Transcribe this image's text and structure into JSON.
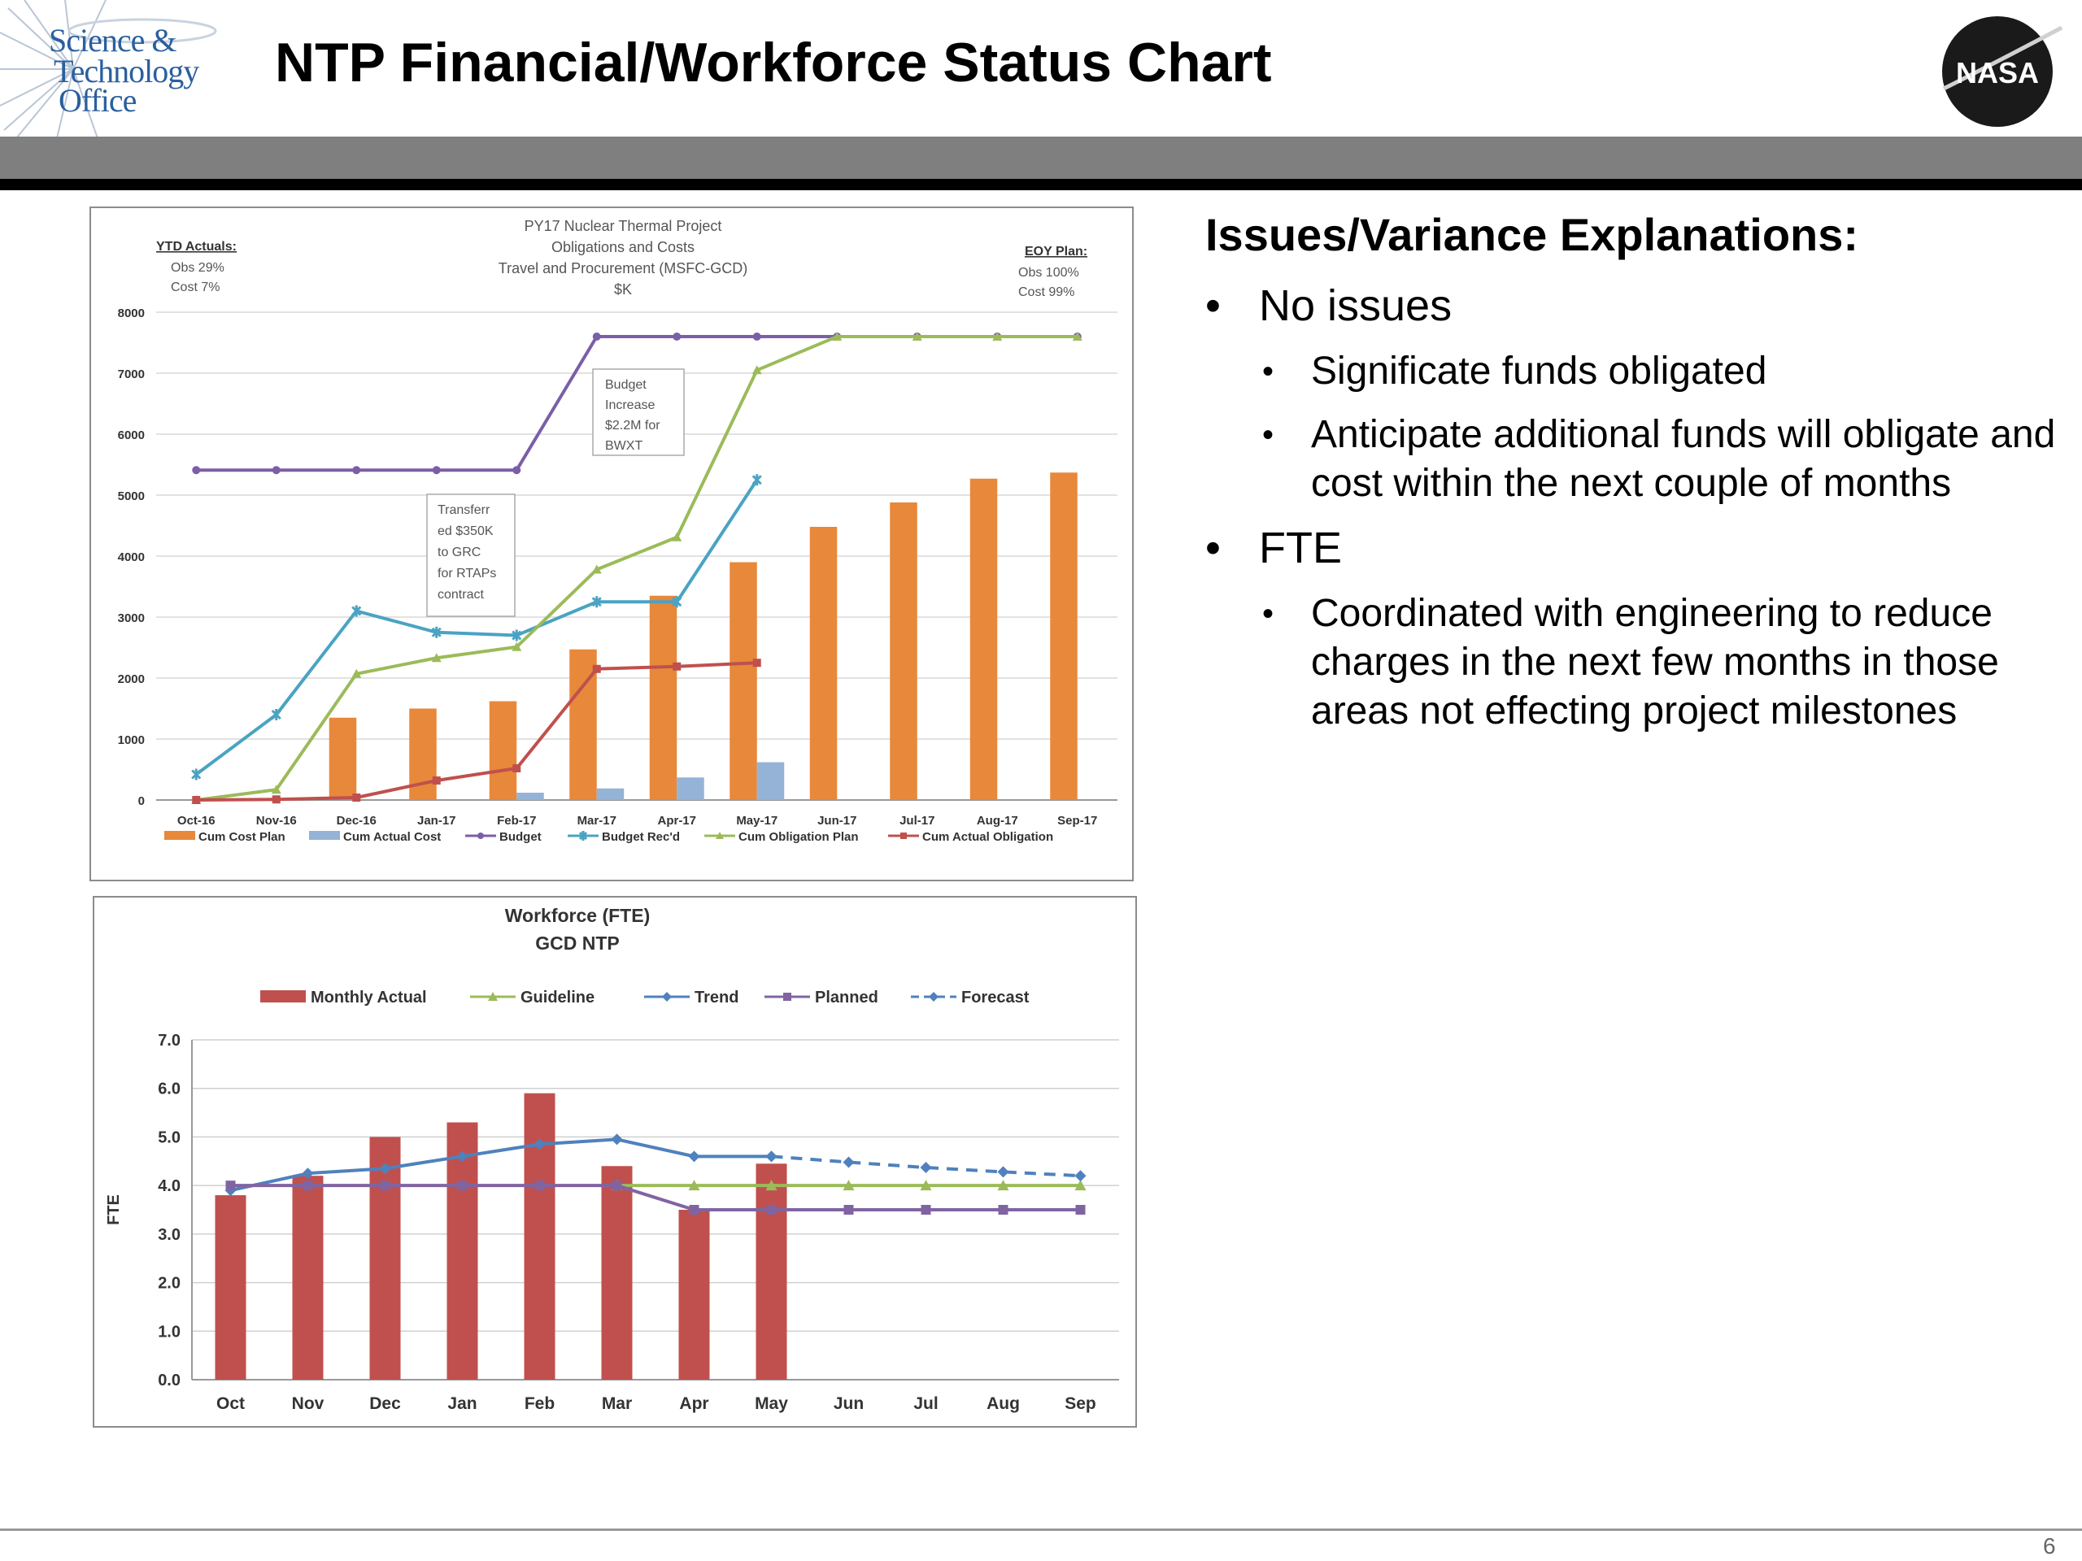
{
  "header": {
    "logo_lines": [
      "Science &",
      "Technology",
      "Office"
    ],
    "title": "NTP Financial/Workforce Status Chart",
    "nasa_logo": "NASA"
  },
  "issues": {
    "heading": "Issues/Variance Explanations:",
    "items": [
      {
        "text": "No issues",
        "sub": [
          "Significate funds obligated",
          "Anticipate additional funds will obligate and cost within the next couple of months"
        ]
      },
      {
        "text": "FTE",
        "sub": [
          "Coordinated with engineering to reduce charges in the next few months in those areas not effecting project milestones"
        ]
      }
    ]
  },
  "page_number": "6",
  "chart_data": [
    {
      "type": "bar",
      "title": [
        "PY17 Nuclear Thermal Project",
        "Obligations and Costs",
        "Travel and Procurement (MSFC-GCD)",
        "$K"
      ],
      "ytd": {
        "label": "YTD Actuals:",
        "lines": [
          "Obs 29%",
          "Cost  7%"
        ]
      },
      "eoy": {
        "label": "EOY Plan:",
        "lines": [
          "Obs   100%",
          "Cost  99%"
        ]
      },
      "categories": [
        "Oct-16",
        "Nov-16",
        "Dec-16",
        "Jan-17",
        "Feb-17",
        "Mar-17",
        "Apr-17",
        "May-17",
        "Jun-17",
        "Jul-17",
        "Aug-17",
        "Sep-17"
      ],
      "ylim": [
        0,
        8000
      ],
      "yticks": [
        0,
        1000,
        2000,
        3000,
        4000,
        5000,
        6000,
        7000,
        8000
      ],
      "grid": true,
      "legend_position": "bottom",
      "series": [
        {
          "name": "Cum Cost Plan",
          "kind": "bar",
          "color": "#e8883a",
          "values": [
            null,
            null,
            1350,
            1500,
            1620,
            2470,
            3350,
            3900,
            4480,
            4880,
            5270,
            5370
          ]
        },
        {
          "name": "Cum Actual Cost",
          "kind": "bar",
          "color": "#95b3d7",
          "values": [
            null,
            null,
            null,
            null,
            120,
            190,
            370,
            620,
            null,
            null,
            null,
            null
          ]
        },
        {
          "name": "Budget",
          "kind": "line",
          "marker": "circle",
          "color": "#7b5ea7",
          "values": [
            5410,
            5410,
            5410,
            5410,
            5410,
            7600,
            7600,
            7600,
            7600,
            7600,
            7600,
            7600
          ]
        },
        {
          "name": "Budget Rec'd",
          "kind": "line",
          "marker": "star",
          "color": "#4aa3c2",
          "values": [
            420,
            1400,
            3100,
            2750,
            2700,
            3250,
            3250,
            5250,
            null,
            null,
            null,
            null
          ]
        },
        {
          "name": "Cum Obligation Plan",
          "kind": "line",
          "marker": "triangle",
          "color": "#9bbb59",
          "values": [
            0,
            170,
            2070,
            2330,
            2510,
            3780,
            4310,
            7050,
            7600,
            7600,
            7600,
            7600
          ]
        },
        {
          "name": "Cum Actual Obligation",
          "kind": "line",
          "marker": "square",
          "color": "#c0504d",
          "values": [
            0,
            10,
            40,
            320,
            520,
            2150,
            2190,
            2250,
            null,
            null,
            null,
            null
          ]
        }
      ],
      "annotations": [
        {
          "text": [
            "Budget",
            "Increase",
            "$2.2M for",
            "BWXT"
          ]
        },
        {
          "text": [
            "Transferr",
            "ed $350K",
            "to GRC",
            "for RTAPs",
            "contract"
          ]
        }
      ]
    },
    {
      "type": "bar",
      "title": [
        "Workforce (FTE)",
        "GCD NTP"
      ],
      "ylabel": "FTE",
      "categories": [
        "Oct",
        "Nov",
        "Dec",
        "Jan",
        "Feb",
        "Mar",
        "Apr",
        "May",
        "Jun",
        "Jul",
        "Aug",
        "Sep"
      ],
      "ylim": [
        0,
        7
      ],
      "yticks": [
        "0.0",
        "1.0",
        "2.0",
        "3.0",
        "4.0",
        "5.0",
        "6.0",
        "7.0"
      ],
      "grid": true,
      "legend_position": "top",
      "series": [
        {
          "name": "Monthly Actual",
          "kind": "bar",
          "color": "#c0504d",
          "values": [
            3.8,
            4.2,
            5.0,
            5.3,
            5.9,
            4.4,
            3.5,
            4.45,
            null,
            null,
            null,
            null
          ]
        },
        {
          "name": "Guideline",
          "kind": "line",
          "marker": "triangle",
          "color": "#9bbb59",
          "values": [
            null,
            null,
            null,
            null,
            null,
            4.0,
            4.0,
            4.0,
            4.0,
            4.0,
            4.0,
            4.0
          ]
        },
        {
          "name": "Trend",
          "kind": "line",
          "marker": "diamond",
          "color": "#4f81bd",
          "values": [
            3.9,
            4.25,
            4.35,
            4.6,
            4.85,
            4.95,
            4.6,
            4.6,
            null,
            null,
            null,
            null
          ]
        },
        {
          "name": "Planned",
          "kind": "line",
          "marker": "square",
          "color": "#8064a2",
          "values": [
            4.0,
            4.0,
            4.0,
            4.0,
            4.0,
            4.0,
            3.5,
            3.5,
            3.5,
            3.5,
            3.5,
            3.5
          ]
        },
        {
          "name": "Forecast",
          "kind": "dashed",
          "marker": "diamond",
          "color": "#4f81bd",
          "values": [
            null,
            null,
            null,
            null,
            null,
            null,
            null,
            4.6,
            4.48,
            4.37,
            4.28,
            4.2
          ]
        }
      ]
    }
  ]
}
